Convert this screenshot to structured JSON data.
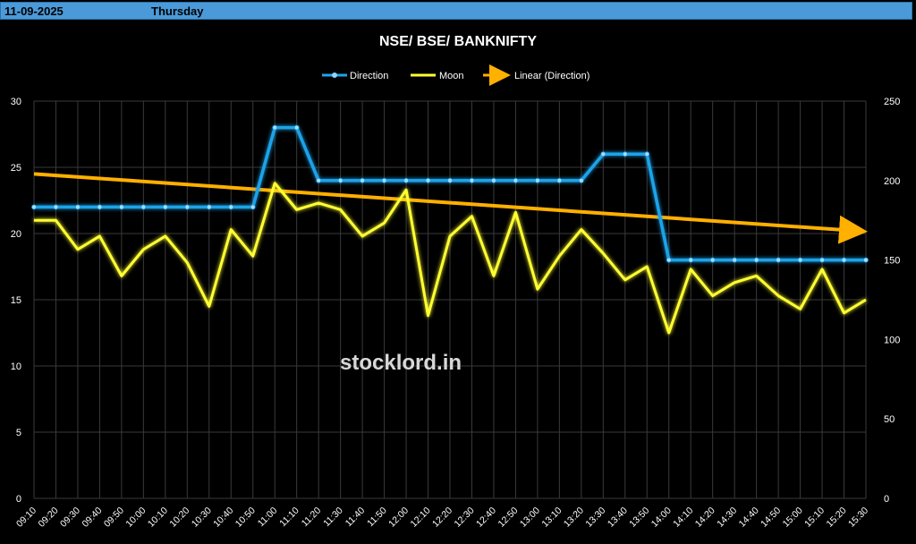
{
  "header": {
    "date": "11-09-2025",
    "day": "Thursday"
  },
  "watermark": "stocklord.in",
  "colors": {
    "direction": "#1fa3ea",
    "moon": "#ffff33",
    "trend": "#ffb000",
    "header": "#4a9ad9"
  },
  "chart_data": {
    "type": "line",
    "title": "NSE/ BSE/ BANKNIFTY",
    "legend": {
      "placement": "top-center",
      "entries": [
        "Direction",
        "Moon",
        "Linear (Direction)"
      ]
    },
    "x": [
      "09:10",
      "09:20",
      "09:30",
      "09:40",
      "09:50",
      "10:00",
      "10:10",
      "10:20",
      "10:30",
      "10:40",
      "10:50",
      "11:00",
      "11:10",
      "11:20",
      "11:30",
      "11:40",
      "11:50",
      "12:00",
      "12:10",
      "12:20",
      "12:30",
      "12:40",
      "12:50",
      "13:00",
      "13:10",
      "13:20",
      "13:30",
      "13:40",
      "13:50",
      "14:00",
      "14:10",
      "14:20",
      "14:30",
      "14:40",
      "14:50",
      "15:00",
      "15:10",
      "15:20",
      "15:30"
    ],
    "y_left": {
      "min": 0,
      "max": 30,
      "ticks": [
        0,
        5,
        10,
        15,
        20,
        25,
        30
      ]
    },
    "y_right": {
      "min": 0,
      "max": 250,
      "ticks": [
        0,
        50,
        100,
        150,
        200,
        250
      ]
    },
    "grid": true,
    "series": [
      {
        "name": "Direction",
        "axis": "left",
        "values": [
          22,
          22,
          22,
          22,
          22,
          22,
          22,
          22,
          22,
          22,
          22,
          28,
          28,
          24,
          24,
          24,
          24,
          24,
          24,
          24,
          24,
          24,
          24,
          24,
          24,
          24,
          26,
          26,
          26,
          18,
          18,
          18,
          18,
          18,
          18,
          18,
          18,
          18,
          18
        ]
      },
      {
        "name": "Moon",
        "axis": "left",
        "values": [
          21,
          21,
          18.8,
          19.8,
          16.8,
          18.8,
          19.8,
          17.8,
          14.5,
          20.3,
          18.3,
          23.8,
          21.8,
          22.3,
          21.8,
          19.8,
          20.8,
          23.3,
          13.8,
          19.8,
          21.3,
          16.8,
          21.6,
          15.8,
          18.3,
          20.3,
          18.5,
          16.5,
          17.5,
          12.5,
          17.3,
          15.3,
          16.3,
          16.8,
          15.3,
          14.3,
          17.3,
          14,
          15
        ],
        "line_type": "straight"
      }
    ],
    "trendline": {
      "name": "Linear (Direction)",
      "of": "Direction",
      "start": 24.5,
      "end": 20.2
    }
  }
}
